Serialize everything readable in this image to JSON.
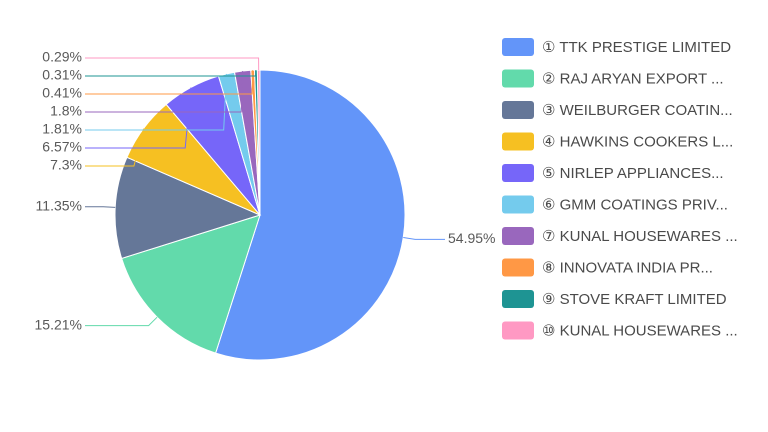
{
  "chart_data": {
    "type": "pie",
    "categories": [
      "① TTK PRESTIGE LIMITED",
      "② RAJ ARYAN EXPORT ...",
      "③ WEILBURGER COATIN...",
      "④ HAWKINS COOKERS L...",
      "⑤ NIRLEP APPLIANCES...",
      "⑥ GMM COATINGS PRIV...",
      "⑦ KUNAL HOUSEWARES ...",
      "⑧ INNOVATA INDIA PR...",
      "⑨ STOVE KRAFT LIMITED",
      "⑩ KUNAL HOUSEWARES ..."
    ],
    "values": [
      54.95,
      15.21,
      11.35,
      7.3,
      6.57,
      1.81,
      1.8,
      0.41,
      0.31,
      0.29
    ],
    "value_labels": [
      "54.95%",
      "15.21%",
      "11.35%",
      "7.3%",
      "6.57%",
      "1.81%",
      "1.8%",
      "0.41%",
      "0.31%",
      "0.29%"
    ],
    "colors": [
      "#6395f9",
      "#62daab",
      "#657798",
      "#f6c022",
      "#7666f9",
      "#74cbed",
      "#9967bd",
      "#ff9845",
      "#1e9493",
      "#ff99c3"
    ],
    "legend": "right"
  }
}
